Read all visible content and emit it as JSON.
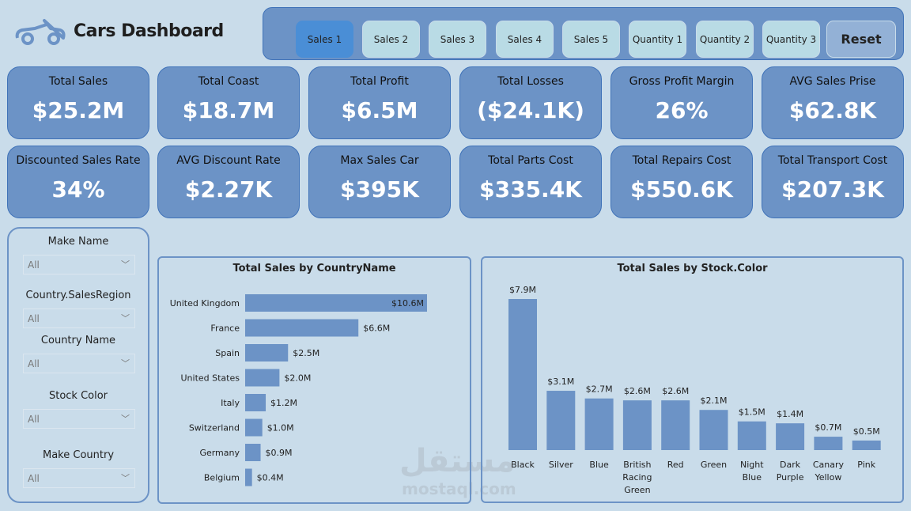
{
  "header": {
    "title": "Cars Dashboard",
    "logo_icon": "convertible-car-icon"
  },
  "nav": {
    "buttons": [
      "Sales 1",
      "Sales 2",
      "Sales 3",
      "Sales 4",
      "Sales 5",
      "Quantity 1",
      "Quantity 2",
      "Quantity 3"
    ],
    "active": "Sales 1",
    "reset_label": "Reset"
  },
  "kpis": [
    {
      "label": "Total Sales",
      "value": "$25.2M"
    },
    {
      "label": "Total Coast",
      "value": "$18.7M"
    },
    {
      "label": "Total Profit",
      "value": "$6.5M"
    },
    {
      "label": "Total Losses",
      "value": "($24.1K)"
    },
    {
      "label": "Gross Profit Margin",
      "value": "26%"
    },
    {
      "label": "AVG Sales Prise",
      "value": "$62.8K"
    },
    {
      "label": "Discounted Sales Rate",
      "value": "34%"
    },
    {
      "label": "AVG Discount Rate",
      "value": "$2.27K"
    },
    {
      "label": "Max Sales Car",
      "value": "$395K"
    },
    {
      "label": "Total Parts Cost",
      "value": "$335.4K"
    },
    {
      "label": "Total Repairs Cost",
      "value": "$550.6K"
    },
    {
      "label": "Total Transport Cost",
      "value": "$207.3K"
    }
  ],
  "filters": [
    {
      "label": "Make Name",
      "value": "All"
    },
    {
      "label": "Country.SalesRegion",
      "value": "All"
    },
    {
      "label": "Country Name",
      "value": "All"
    },
    {
      "label": "Stock Color",
      "value": "All"
    },
    {
      "label": "Make Country",
      "value": "All"
    }
  ],
  "watermark": {
    "arabic": "مستقل",
    "latin": "mostaql.com"
  },
  "colors": {
    "background": "#c9dcea",
    "card": "#6c93c6",
    "border": "#3f72b8",
    "active_button": "#4a8ed6",
    "bar": "#6c93c6"
  },
  "chart_data": [
    {
      "type": "bar",
      "orientation": "horizontal",
      "title": "Total Sales by CountryName",
      "categories": [
        "United Kingdom",
        "France",
        "Spain",
        "United States",
        "Italy",
        "Switzerland",
        "Germany",
        "Belgium"
      ],
      "values": [
        10.6,
        6.6,
        2.5,
        2.0,
        1.2,
        1.0,
        0.9,
        0.4
      ],
      "labels": [
        "$10.6M",
        "$6.6M",
        "$2.5M",
        "$2.0M",
        "$1.2M",
        "$1.0M",
        "$0.9M",
        "$0.4M"
      ],
      "unit": "$M"
    },
    {
      "type": "bar",
      "orientation": "vertical",
      "title": "Total Sales by Stock.Color",
      "categories": [
        "Black",
        "Silver",
        "Blue",
        "British Racing Green",
        "Red",
        "Green",
        "Night Blue",
        "Dark Purple",
        "Canary Yellow",
        "Pink"
      ],
      "values": [
        7.9,
        3.1,
        2.7,
        2.6,
        2.6,
        2.1,
        1.5,
        1.4,
        0.7,
        0.5
      ],
      "labels": [
        "$7.9M",
        "$3.1M",
        "$2.7M",
        "$2.6M",
        "$2.6M",
        "$2.1M",
        "$1.5M",
        "$1.4M",
        "$0.7M",
        "$0.5M"
      ],
      "unit": "$M"
    }
  ]
}
